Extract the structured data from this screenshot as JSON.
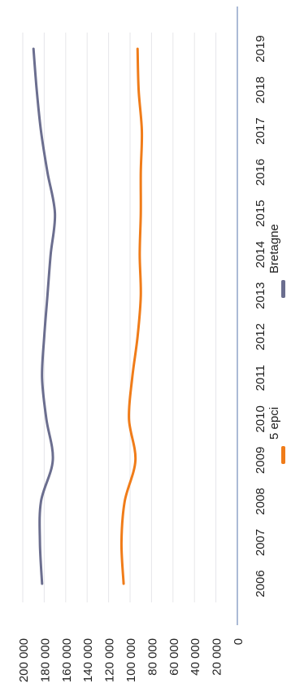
{
  "chart_data": {
    "type": "line",
    "orientation": "rotated-90-ccw",
    "x": [
      "2006",
      "2007",
      "2008",
      "2009",
      "2010",
      "2011",
      "2012",
      "2013",
      "2014",
      "2015",
      "2016",
      "2017",
      "2018",
      "2019"
    ],
    "series": [
      {
        "name": "5 epci",
        "color": "#f07c19",
        "values": [
          106000,
          108000,
          105000,
          95000,
          101000,
          98000,
          93000,
          90000,
          91000,
          90000,
          90000,
          89000,
          92000,
          93000
        ]
      },
      {
        "name": "Bretagne",
        "color": "#6b6e8f",
        "values": [
          182000,
          184000,
          183000,
          172000,
          178000,
          182000,
          180000,
          177000,
          174000,
          170000,
          177000,
          183000,
          187000,
          190000
        ]
      }
    ],
    "yticks": [
      "0",
      "20 000",
      "40 000",
      "60 000",
      "80 000",
      "100 000",
      "120 000",
      "140 000",
      "160 000",
      "180 000",
      "200 000"
    ],
    "ylim": [
      0,
      200000
    ],
    "grid": true,
    "legend_position": "bottom",
    "title": "",
    "xlabel": "",
    "ylabel": ""
  }
}
